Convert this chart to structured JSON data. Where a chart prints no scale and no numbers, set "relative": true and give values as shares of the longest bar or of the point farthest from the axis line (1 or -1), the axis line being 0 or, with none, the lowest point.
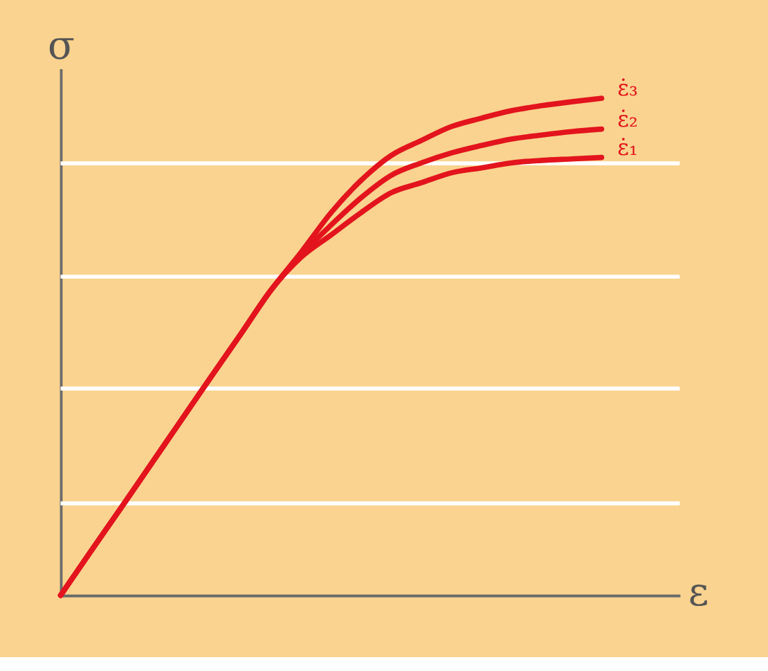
{
  "chart_data": {
    "type": "line",
    "relative": true,
    "xlabel": "ε",
    "ylabel": "σ",
    "categories": [
      null,
      null,
      null,
      null,
      null,
      null,
      null,
      null,
      null,
      null,
      null,
      null,
      null,
      null,
      null,
      null,
      null,
      null,
      null
    ],
    "series": [
      {
        "name": "ε̇₁",
        "color": "#e3141d",
        "values": [
          0,
          0.088,
          0.175,
          0.263,
          0.351,
          0.439,
          0.526,
          0.614,
          0.68,
          0.725,
          0.77,
          0.81,
          0.83,
          0.85,
          0.86,
          0.87,
          0.875,
          0.878,
          0.881
        ]
      },
      {
        "name": "ε̇₂",
        "color": "#e3141d",
        "values": [
          0,
          0.088,
          0.175,
          0.263,
          0.351,
          0.439,
          0.526,
          0.614,
          0.685,
          0.745,
          0.8,
          0.845,
          0.87,
          0.89,
          0.905,
          0.918,
          0.926,
          0.933,
          0.938
        ]
      },
      {
        "name": "ε̇₃",
        "color": "#e3141d",
        "values": [
          0,
          0.088,
          0.175,
          0.263,
          0.351,
          0.439,
          0.526,
          0.614,
          0.69,
          0.77,
          0.835,
          0.885,
          0.915,
          0.943,
          0.96,
          0.975,
          0.985,
          0.993,
          1
        ]
      }
    ],
    "ref_lines": [
      {
        "axis": "y",
        "value": 0.185,
        "color": "#ffffff"
      },
      {
        "axis": "y",
        "value": 0.416,
        "color": "#ffffff"
      },
      {
        "axis": "y",
        "value": 0.641,
        "color": "#ffffff"
      },
      {
        "axis": "y",
        "value": 0.869,
        "color": "#ffffff"
      }
    ],
    "legend": false,
    "marker": "none",
    "line_style": "solid"
  }
}
